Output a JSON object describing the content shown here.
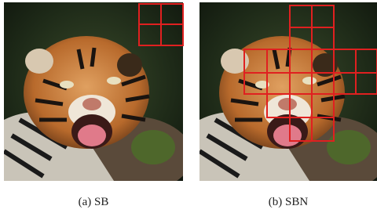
{
  "figure": {
    "panels": [
      {
        "caption": "(a) SB"
      },
      {
        "caption": "(b) SBN"
      }
    ]
  }
}
